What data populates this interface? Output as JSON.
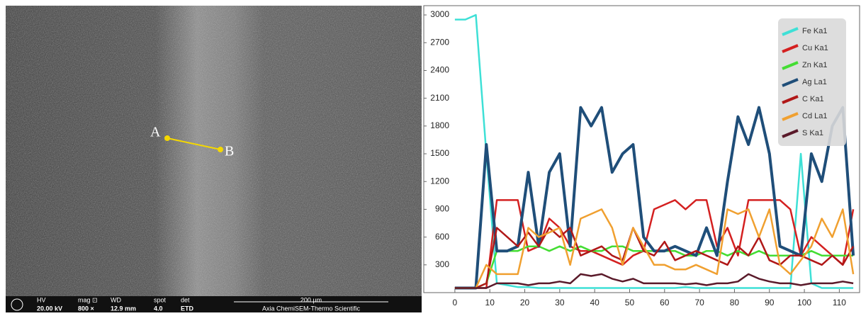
{
  "image": {
    "points": [
      "A",
      "B"
    ],
    "info_bar": {
      "labels": [
        "HV",
        "mag ⊡",
        "WD",
        "spot",
        "det"
      ],
      "values": [
        "20.00 kV",
        "800 ×",
        "12.9 mm",
        "4.0",
        "ETD"
      ],
      "scale": "200 µm",
      "instrument": "Axia ChemiSEM-Thermo Scientific"
    }
  },
  "chart_data": {
    "type": "line",
    "x": [
      0,
      3,
      6,
      9,
      12,
      15,
      18,
      21,
      24,
      27,
      30,
      33,
      36,
      39,
      42,
      45,
      48,
      51,
      54,
      57,
      60,
      63,
      66,
      69,
      72,
      75,
      78,
      81,
      84,
      87,
      90,
      93,
      96,
      99,
      102,
      105,
      108,
      111,
      114
    ],
    "series": [
      {
        "name": "Fe Ka1",
        "color": "#3ee0d6",
        "values": [
          2950,
          2950,
          3000,
          1500,
          100,
          80,
          60,
          60,
          50,
          50,
          50,
          50,
          50,
          50,
          50,
          50,
          50,
          50,
          50,
          50,
          50,
          50,
          60,
          50,
          50,
          50,
          50,
          50,
          50,
          50,
          50,
          50,
          50,
          1500,
          100,
          50,
          50,
          50,
          50
        ]
      },
      {
        "name": "Cu Ka1",
        "color": "#d42020",
        "values": [
          50,
          50,
          50,
          50,
          1000,
          1000,
          1000,
          450,
          500,
          800,
          700,
          500,
          450,
          450,
          400,
          350,
          300,
          400,
          450,
          900,
          950,
          1000,
          900,
          1000,
          1000,
          500,
          700,
          400,
          1000,
          1000,
          1000,
          1000,
          900,
          400,
          600,
          500,
          400,
          300,
          900
        ]
      },
      {
        "name": "Zn Ka1",
        "color": "#44dd33",
        "values": [
          50,
          50,
          50,
          100,
          450,
          450,
          450,
          500,
          500,
          450,
          500,
          450,
          500,
          450,
          450,
          500,
          500,
          450,
          450,
          450,
          450,
          450,
          400,
          400,
          450,
          450,
          400,
          450,
          400,
          450,
          400,
          400,
          400,
          400,
          450,
          400,
          400,
          400,
          400
        ]
      },
      {
        "name": "Ag La1",
        "color": "#1f4e79",
        "values": [
          50,
          50,
          50,
          1600,
          450,
          450,
          500,
          1300,
          500,
          1300,
          1500,
          500,
          2000,
          1800,
          2000,
          1300,
          1500,
          1600,
          600,
          450,
          450,
          500,
          450,
          400,
          700,
          400,
          1200,
          1900,
          1600,
          2000,
          1500,
          500,
          450,
          400,
          1500,
          1200,
          1800,
          2000,
          400
        ]
      },
      {
        "name": "C Ka1",
        "color": "#b01818",
        "values": [
          50,
          50,
          50,
          100,
          700,
          600,
          500,
          650,
          500,
          700,
          600,
          700,
          400,
          450,
          500,
          400,
          350,
          700,
          450,
          400,
          550,
          350,
          400,
          450,
          400,
          350,
          300,
          500,
          400,
          600,
          350,
          300,
          400,
          400,
          350,
          300,
          400,
          300,
          500
        ]
      },
      {
        "name": "Cd La1",
        "color": "#f0a030",
        "values": [
          50,
          50,
          50,
          300,
          200,
          200,
          200,
          700,
          600,
          650,
          700,
          300,
          800,
          850,
          900,
          700,
          300,
          700,
          500,
          300,
          300,
          250,
          250,
          300,
          250,
          200,
          900,
          850,
          900,
          600,
          900,
          300,
          200,
          350,
          500,
          800,
          600,
          900,
          200
        ]
      },
      {
        "name": "S Ka1",
        "color": "#5a1a2a",
        "values": [
          50,
          50,
          50,
          50,
          100,
          100,
          100,
          80,
          100,
          100,
          120,
          100,
          200,
          180,
          200,
          150,
          120,
          150,
          100,
          100,
          100,
          100,
          90,
          100,
          80,
          100,
          100,
          120,
          200,
          150,
          120,
          100,
          100,
          80,
          100,
          100,
          100,
          120,
          100
        ]
      }
    ],
    "xlim": [
      -8.9,
      115.8
    ],
    "xticks": [
      0,
      10,
      20,
      30,
      40,
      50,
      60,
      70,
      80,
      90,
      100,
      110
    ],
    "ylim": [
      0,
      3100
    ],
    "yticks": [
      300,
      600,
      900,
      1200,
      1500,
      1800,
      2100,
      2400,
      2700,
      3000
    ],
    "legend": "upper right",
    "grid": false
  }
}
